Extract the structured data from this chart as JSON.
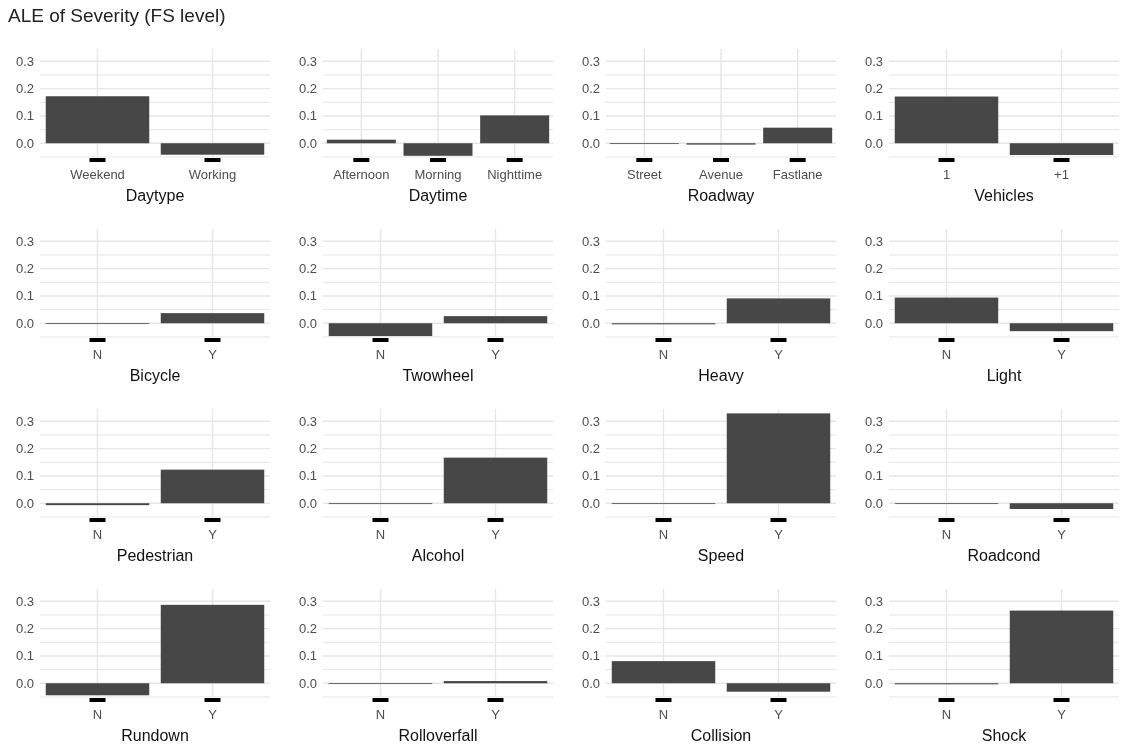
{
  "chart_data": [
    {
      "type": "bar",
      "title": "ALE of Severity (FS level)",
      "xlabel": "Daytype",
      "categories": [
        "Weekend",
        "Working"
      ],
      "values": [
        0.172,
        -0.042
      ],
      "color": "#474747",
      "ylim": [
        -0.065,
        0.345
      ],
      "yticks": [
        {
          "value": -0.05,
          "label": null
        },
        {
          "value": 0,
          "label": "0.0"
        },
        {
          "value": 0.05,
          "label": null
        },
        0.1,
        {
          "value": 0.15,
          "label": null
        },
        0.2,
        {
          "value": 0.25,
          "label": null
        },
        0.3
      ],
      "grid": true
    },
    {
      "type": "bar",
      "xlabel": "Daytime",
      "categories": [
        "Afternoon",
        "Morning",
        "Nighttime"
      ],
      "values": [
        0.013,
        -0.046,
        0.102
      ],
      "color": "#474747",
      "ylim": [
        -0.065,
        0.345
      ],
      "yticks": [
        {
          "value": -0.05,
          "label": null
        },
        {
          "value": 0,
          "label": "0.0"
        },
        {
          "value": 0.05,
          "label": null
        },
        0.1,
        {
          "value": 0.15,
          "label": null
        },
        0.2,
        {
          "value": 0.25,
          "label": null
        },
        0.3
      ],
      "grid": true
    },
    {
      "type": "bar",
      "xlabel": "Roadway",
      "categories": [
        "Street",
        "Avenue",
        "Fastlane"
      ],
      "values": [
        -0.002,
        -0.005,
        0.057
      ],
      "color": "#474747",
      "ylim": [
        -0.065,
        0.345
      ],
      "yticks": [
        {
          "value": -0.05,
          "label": null
        },
        {
          "value": 0,
          "label": "0.0"
        },
        {
          "value": 0.05,
          "label": null
        },
        0.1,
        {
          "value": 0.15,
          "label": null
        },
        0.2,
        {
          "value": 0.25,
          "label": null
        },
        0.3
      ],
      "grid": true
    },
    {
      "type": "bar",
      "xlabel": "Vehicles",
      "categories": [
        "1",
        "+1"
      ],
      "values": [
        0.171,
        -0.043
      ],
      "color": "#474747",
      "ylim": [
        -0.065,
        0.345
      ],
      "yticks": [
        {
          "value": -0.05,
          "label": null
        },
        {
          "value": 0,
          "label": "0.0"
        },
        {
          "value": 0.05,
          "label": null
        },
        0.1,
        {
          "value": 0.15,
          "label": null
        },
        0.2,
        {
          "value": 0.25,
          "label": null
        },
        0.3
      ],
      "grid": true
    },
    {
      "type": "bar",
      "xlabel": "Bicycle",
      "categories": [
        "N",
        "Y"
      ],
      "values": [
        -0.002,
        0.037
      ],
      "color": "#474747",
      "ylim": [
        -0.065,
        0.345
      ],
      "yticks": [
        {
          "value": -0.05,
          "label": null
        },
        {
          "value": 0,
          "label": "0.0"
        },
        {
          "value": 0.05,
          "label": null
        },
        0.1,
        {
          "value": 0.15,
          "label": null
        },
        0.2,
        {
          "value": 0.25,
          "label": null
        },
        0.3
      ],
      "grid": true
    },
    {
      "type": "bar",
      "xlabel": "Twowheel",
      "categories": [
        "N",
        "Y"
      ],
      "values": [
        -0.047,
        0.026
      ],
      "color": "#474747",
      "ylim": [
        -0.065,
        0.345
      ],
      "yticks": [
        {
          "value": -0.05,
          "label": null
        },
        {
          "value": 0,
          "label": "0.0"
        },
        {
          "value": 0.05,
          "label": null
        },
        0.1,
        {
          "value": 0.15,
          "label": null
        },
        0.2,
        {
          "value": 0.25,
          "label": null
        },
        0.3
      ],
      "grid": true
    },
    {
      "type": "bar",
      "xlabel": "Heavy",
      "categories": [
        "N",
        "Y"
      ],
      "values": [
        -0.004,
        0.091
      ],
      "color": "#474747",
      "ylim": [
        -0.065,
        0.345
      ],
      "yticks": [
        {
          "value": -0.05,
          "label": null
        },
        {
          "value": 0,
          "label": "0.0"
        },
        {
          "value": 0.05,
          "label": null
        },
        0.1,
        {
          "value": 0.15,
          "label": null
        },
        0.2,
        {
          "value": 0.25,
          "label": null
        },
        0.3
      ],
      "grid": true
    },
    {
      "type": "bar",
      "xlabel": "Light",
      "categories": [
        "N",
        "Y"
      ],
      "values": [
        0.094,
        -0.029
      ],
      "color": "#474747",
      "ylim": [
        -0.065,
        0.345
      ],
      "yticks": [
        {
          "value": -0.05,
          "label": null
        },
        {
          "value": 0,
          "label": "0.0"
        },
        {
          "value": 0.05,
          "label": null
        },
        0.1,
        {
          "value": 0.15,
          "label": null
        },
        0.2,
        {
          "value": 0.25,
          "label": null
        },
        0.3
      ],
      "grid": true
    },
    {
      "type": "bar",
      "xlabel": "Pedestrian",
      "categories": [
        "N",
        "Y"
      ],
      "values": [
        -0.007,
        0.123
      ],
      "color": "#474747",
      "ylim": [
        -0.065,
        0.345
      ],
      "yticks": [
        {
          "value": -0.05,
          "label": null
        },
        {
          "value": 0,
          "label": "0.0"
        },
        {
          "value": 0.05,
          "label": null
        },
        0.1,
        {
          "value": 0.15,
          "label": null
        },
        0.2,
        {
          "value": 0.25,
          "label": null
        },
        0.3
      ],
      "grid": true
    },
    {
      "type": "bar",
      "xlabel": "Alcohol",
      "categories": [
        "N",
        "Y"
      ],
      "values": [
        -0.003,
        0.167
      ],
      "color": "#474747",
      "ylim": [
        -0.065,
        0.345
      ],
      "yticks": [
        {
          "value": -0.05,
          "label": null
        },
        {
          "value": 0,
          "label": "0.0"
        },
        {
          "value": 0.05,
          "label": null
        },
        0.1,
        {
          "value": 0.15,
          "label": null
        },
        0.2,
        {
          "value": 0.25,
          "label": null
        },
        0.3
      ],
      "grid": true
    },
    {
      "type": "bar",
      "xlabel": "Speed",
      "categories": [
        "N",
        "Y"
      ],
      "values": [
        -0.001,
        0.329
      ],
      "color": "#474747",
      "ylim": [
        -0.065,
        0.345
      ],
      "yticks": [
        {
          "value": -0.05,
          "label": null
        },
        {
          "value": 0,
          "label": "0.0"
        },
        {
          "value": 0.05,
          "label": null
        },
        0.1,
        {
          "value": 0.15,
          "label": null
        },
        0.2,
        {
          "value": 0.25,
          "label": null
        },
        0.3
      ],
      "grid": true
    },
    {
      "type": "bar",
      "xlabel": "Roadcond",
      "categories": [
        "N",
        "Y"
      ],
      "values": [
        0.0,
        -0.021
      ],
      "color": "#474747",
      "ylim": [
        -0.065,
        0.345
      ],
      "yticks": [
        {
          "value": -0.05,
          "label": null
        },
        {
          "value": 0,
          "label": "0.0"
        },
        {
          "value": 0.05,
          "label": null
        },
        0.1,
        {
          "value": 0.15,
          "label": null
        },
        0.2,
        {
          "value": 0.25,
          "label": null
        },
        0.3
      ],
      "grid": true
    },
    {
      "type": "bar",
      "xlabel": "Rundown",
      "categories": [
        "N",
        "Y"
      ],
      "values": [
        -0.044,
        0.287
      ],
      "color": "#474747",
      "ylim": [
        -0.065,
        0.345
      ],
      "yticks": [
        {
          "value": -0.05,
          "label": null
        },
        {
          "value": 0,
          "label": "0.0"
        },
        {
          "value": 0.05,
          "label": null
        },
        0.1,
        {
          "value": 0.15,
          "label": null
        },
        0.2,
        {
          "value": 0.25,
          "label": null
        },
        0.3
      ],
      "grid": true
    },
    {
      "type": "bar",
      "xlabel": "Rolloverfall",
      "categories": [
        "N",
        "Y"
      ],
      "values": [
        -0.001,
        0.008
      ],
      "color": "#474747",
      "ylim": [
        -0.065,
        0.345
      ],
      "yticks": [
        {
          "value": -0.05,
          "label": null
        },
        {
          "value": 0,
          "label": "0.0"
        },
        {
          "value": 0.05,
          "label": null
        },
        0.1,
        {
          "value": 0.15,
          "label": null
        },
        0.2,
        {
          "value": 0.25,
          "label": null
        },
        0.3
      ],
      "grid": true
    },
    {
      "type": "bar",
      "xlabel": "Collision",
      "categories": [
        "N",
        "Y"
      ],
      "values": [
        0.081,
        -0.031
      ],
      "color": "#474747",
      "ylim": [
        -0.065,
        0.345
      ],
      "yticks": [
        {
          "value": -0.05,
          "label": null
        },
        {
          "value": 0,
          "label": "0.0"
        },
        {
          "value": 0.05,
          "label": null
        },
        0.1,
        {
          "value": 0.15,
          "label": null
        },
        0.2,
        {
          "value": 0.25,
          "label": null
        },
        0.3
      ],
      "grid": true
    },
    {
      "type": "bar",
      "xlabel": "Shock",
      "categories": [
        "N",
        "Y"
      ],
      "values": [
        -0.004,
        0.266
      ],
      "color": "#474747",
      "ylim": [
        -0.065,
        0.345
      ],
      "yticks": [
        {
          "value": -0.05,
          "label": null
        },
        {
          "value": 0,
          "label": "0.0"
        },
        {
          "value": 0.05,
          "label": null
        },
        0.1,
        {
          "value": 0.15,
          "label": null
        },
        0.2,
        {
          "value": 0.25,
          "label": null
        },
        0.3
      ],
      "grid": true
    }
  ]
}
